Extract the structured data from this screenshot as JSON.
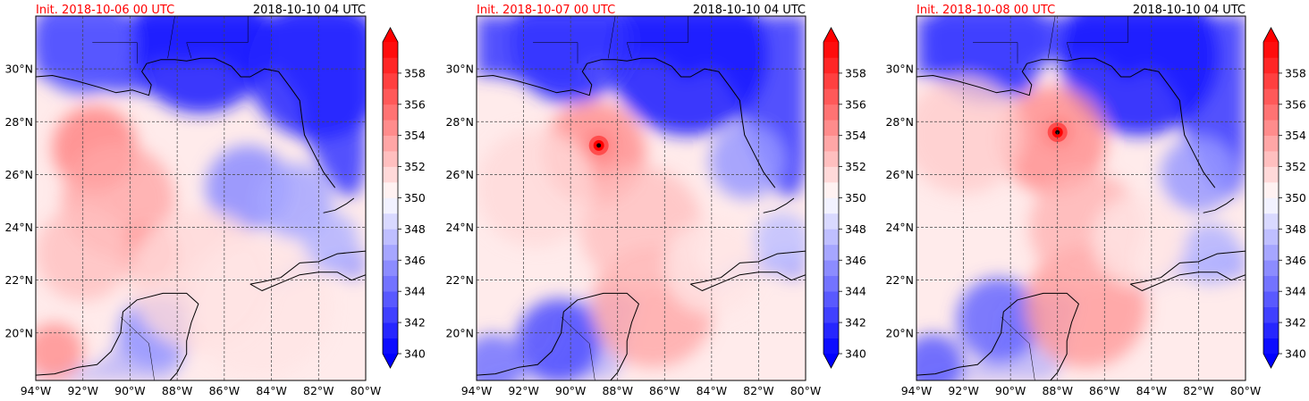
{
  "figure": {
    "panels": [
      {
        "init_label": "Init. 2018-10-06 00 UTC",
        "valid_label": "2018-10-10 04 UTC",
        "storm_center": null,
        "warm_blobs": [
          {
            "lon": -91.5,
            "lat": 27.0,
            "val": 355.0,
            "r": 1.8
          },
          {
            "lon": -90.5,
            "lat": 25.0,
            "val": 353.5,
            "r": 2.4
          },
          {
            "lon": -89.2,
            "lat": 23.0,
            "val": 354.0,
            "r": 1.3
          },
          {
            "lon": -93.2,
            "lat": 19.3,
            "val": 354.5,
            "r": 1.2
          },
          {
            "lon": -87.0,
            "lat": 22.0,
            "val": 351.5,
            "r": 3.0
          },
          {
            "lon": -84.5,
            "lat": 21.0,
            "val": 351.0,
            "r": 3.0
          },
          {
            "lon": -92.0,
            "lat": 23.0,
            "val": 352.5,
            "r": 2.0
          }
        ],
        "cool_blobs": [
          {
            "lon": -87.0,
            "lat": 31.0,
            "val": 341.0,
            "r": 3.0
          },
          {
            "lon": -82.0,
            "lat": 30.0,
            "val": 341.5,
            "r": 3.0
          },
          {
            "lon": -92.0,
            "lat": 31.0,
            "val": 343.5,
            "r": 2.2
          },
          {
            "lon": -85.0,
            "lat": 25.5,
            "val": 345.5,
            "r": 1.8
          },
          {
            "lon": -83.0,
            "lat": 25.0,
            "val": 346.5,
            "r": 1.6
          },
          {
            "lon": -89.0,
            "lat": 20.0,
            "val": 346.0,
            "r": 1.5
          },
          {
            "lon": -81.5,
            "lat": 23.5,
            "val": 347.0,
            "r": 1.2
          }
        ]
      },
      {
        "init_label": "Init. 2018-10-07 00 UTC",
        "valid_label": "2018-10-10 04 UTC",
        "storm_center": {
          "lon": -88.8,
          "lat": 27.1
        },
        "warm_blobs": [
          {
            "lon": -88.8,
            "lat": 27.1,
            "val": 359.0,
            "r": 0.6
          },
          {
            "lon": -89.0,
            "lat": 26.8,
            "val": 354.5,
            "r": 2.2
          },
          {
            "lon": -86.5,
            "lat": 21.0,
            "val": 353.5,
            "r": 2.6
          },
          {
            "lon": -87.0,
            "lat": 24.0,
            "val": 352.5,
            "r": 2.6
          },
          {
            "lon": -91.5,
            "lat": 25.5,
            "val": 351.5,
            "r": 2.5
          },
          {
            "lon": -84.0,
            "lat": 22.5,
            "val": 351.0,
            "r": 2.0
          }
        ],
        "cool_blobs": [
          {
            "lon": -85.0,
            "lat": 30.5,
            "val": 341.0,
            "r": 3.4
          },
          {
            "lon": -90.0,
            "lat": 31.0,
            "val": 342.0,
            "r": 2.6
          },
          {
            "lon": -90.5,
            "lat": 19.7,
            "val": 343.0,
            "r": 1.8
          },
          {
            "lon": -93.3,
            "lat": 18.8,
            "val": 344.5,
            "r": 1.3
          },
          {
            "lon": -82.5,
            "lat": 26.5,
            "val": 346.0,
            "r": 1.6
          },
          {
            "lon": -81.0,
            "lat": 23.5,
            "val": 347.5,
            "r": 1.2
          }
        ]
      },
      {
        "init_label": "Init. 2018-10-08 00 UTC",
        "valid_label": "2018-10-10 04 UTC",
        "storm_center": {
          "lon": -88.0,
          "lat": 27.6
        },
        "warm_blobs": [
          {
            "lon": -88.0,
            "lat": 27.6,
            "val": 359.0,
            "r": 0.6
          },
          {
            "lon": -88.2,
            "lat": 27.3,
            "val": 354.5,
            "r": 2.3
          },
          {
            "lon": -86.8,
            "lat": 21.0,
            "val": 354.0,
            "r": 2.6
          },
          {
            "lon": -86.8,
            "lat": 24.0,
            "val": 353.0,
            "r": 2.4
          },
          {
            "lon": -92.0,
            "lat": 27.5,
            "val": 352.0,
            "r": 2.5
          },
          {
            "lon": -84.5,
            "lat": 23.5,
            "val": 351.0,
            "r": 2.0
          }
        ],
        "cool_blobs": [
          {
            "lon": -84.5,
            "lat": 30.5,
            "val": 341.0,
            "r": 3.4
          },
          {
            "lon": -91.0,
            "lat": 31.0,
            "val": 342.5,
            "r": 2.6
          },
          {
            "lon": -90.5,
            "lat": 20.5,
            "val": 344.0,
            "r": 1.8
          },
          {
            "lon": -93.3,
            "lat": 18.8,
            "val": 343.5,
            "r": 1.3
          },
          {
            "lon": -82.0,
            "lat": 26.0,
            "val": 346.0,
            "r": 1.6
          },
          {
            "lon": -81.5,
            "lat": 23.0,
            "val": 347.0,
            "r": 1.3
          }
        ]
      }
    ],
    "map_extent": {
      "lon_min": -94,
      "lon_max": -80,
      "lat_min": 18.2,
      "lat_max": 32.0
    },
    "lon_ticks": [
      -94,
      -92,
      -90,
      -88,
      -86,
      -84,
      -82,
      -80
    ],
    "lon_tick_labels": [
      "94°W",
      "92°W",
      "90°W",
      "88°W",
      "86°W",
      "84°W",
      "82°W",
      "80°W"
    ],
    "lat_ticks": [
      20,
      22,
      24,
      26,
      28,
      30
    ],
    "lat_tick_labels": [
      "20°N",
      "22°N",
      "24°N",
      "26°N",
      "28°N",
      "30°N"
    ],
    "colorbar": {
      "min": 340,
      "max": 360,
      "step": 1,
      "ticks": [
        340,
        342,
        344,
        346,
        348,
        350,
        352,
        354,
        356,
        358
      ],
      "tick_labels": [
        "340",
        "342",
        "344",
        "346",
        "348",
        "350",
        "352",
        "354",
        "356",
        "358"
      ],
      "extend": "both",
      "colormap": "bwr"
    },
    "colors": {
      "init_label": "#ff0000",
      "valid_label": "#000000",
      "low": "#0000ff",
      "mid": "#ffffff",
      "high": "#ff0000",
      "coast": "#000000",
      "grid": "#444444"
    }
  }
}
